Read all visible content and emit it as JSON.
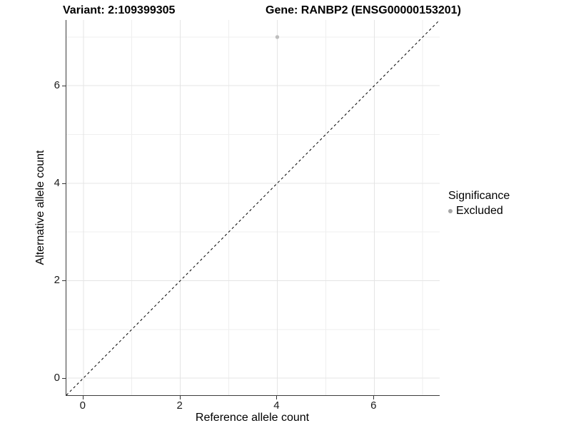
{
  "chart_data": {
    "type": "scatter",
    "title_left": "Variant: 2:109399305",
    "title_right": "Gene: RANBP2 (ENSG00000153201)",
    "xlabel": "Reference allele count",
    "ylabel": "Alternative allele count",
    "xlim": [
      -0.35,
      7.35
    ],
    "ylim": [
      -0.35,
      7.35
    ],
    "x_ticks": [
      0,
      2,
      4,
      6
    ],
    "y_ticks": [
      0,
      2,
      4,
      6
    ],
    "minor_gridlines": [
      1,
      3,
      5,
      7
    ],
    "grid": true,
    "major_grid_color": "#e4e4e4",
    "minor_grid_color": "#efefef",
    "points": [
      {
        "x": 4,
        "y": 7,
        "significance": "Excluded",
        "color": "#bebebe",
        "radius": 2.7
      }
    ],
    "reference_line": {
      "equation": "y = x",
      "style": "dashed",
      "color": "#000000",
      "from": [
        -0.35,
        -0.35
      ],
      "to": [
        7.35,
        7.35
      ]
    },
    "legend": {
      "title": "Significance",
      "position": "right",
      "items": [
        {
          "label": "Excluded",
          "color": "#a6a6a6"
        }
      ]
    }
  }
}
